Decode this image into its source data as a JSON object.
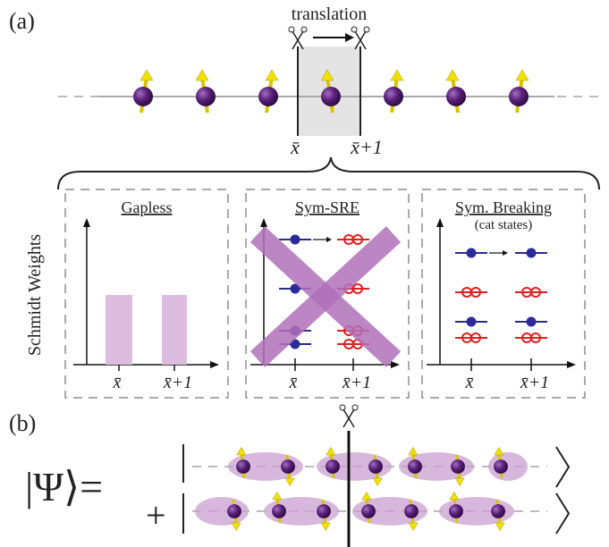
{
  "panel_a": {
    "label": "(a)",
    "translation": "translation",
    "cut_left": "x̄",
    "cut_right": "x̄+1"
  },
  "y_label": "Schmidt Weights",
  "panels": [
    {
      "title": "Gapless",
      "tick_left": "x̄",
      "tick_right": "x̄+1"
    },
    {
      "title": "Sym-SRE",
      "tick_left": "x̄",
      "tick_right": "x̄+1"
    },
    {
      "title": "Sym. Breaking",
      "subtitle": "(cat states)",
      "tick_left": "x̄",
      "tick_right": "x̄+1"
    }
  ],
  "panel_b": {
    "label": "(b)",
    "lhs": "|Ψ⟩=",
    "plus": "+"
  }
}
